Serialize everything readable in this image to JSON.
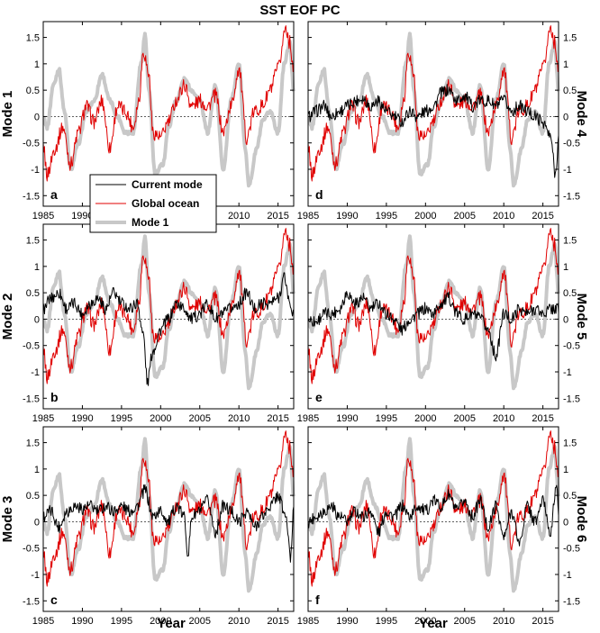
{
  "chart_data": {
    "type": "line",
    "title": "SST EOF PC",
    "xlabel": "Year",
    "xlim": [
      1985,
      2017
    ],
    "ylim": [
      -1.7,
      1.8
    ],
    "xticks": [
      "1985",
      "1990",
      "1995",
      "2000",
      "2005",
      "2010",
      "2015"
    ],
    "yticks": [
      "-1.5",
      "-1",
      "-0.5",
      "0",
      "0.5",
      "1",
      "1.5"
    ],
    "legend": {
      "placement": "inside panel a/b boundary",
      "entries": [
        {
          "name": "Current mode",
          "color": "#000000"
        },
        {
          "name": "Global ocean",
          "color": "#e00000"
        },
        {
          "name": "Mode 1",
          "color": "#c8c8c8"
        }
      ]
    },
    "colors": {
      "current": "#000000",
      "global": "#e00000",
      "mode1": "#c8c8c8"
    },
    "keypoints": {
      "global_ocean": [
        [
          1985,
          -0.55
        ],
        [
          1985.5,
          -1.1
        ],
        [
          1986.5,
          -0.6
        ],
        [
          1987.5,
          -0.2
        ],
        [
          1988.5,
          -0.9
        ],
        [
          1989.5,
          -0.3
        ],
        [
          1990.5,
          0.2
        ],
        [
          1991.5,
          -0.1
        ],
        [
          1992.5,
          0.3
        ],
        [
          1993.5,
          -0.6
        ],
        [
          1994.5,
          0.2
        ],
        [
          1995.5,
          0.1
        ],
        [
          1996.5,
          -0.2
        ],
        [
          1997.2,
          0.3
        ],
        [
          1997.8,
          1.25
        ],
        [
          1998.5,
          0.8
        ],
        [
          1999,
          -0.3
        ],
        [
          2000,
          -0.4
        ],
        [
          2001,
          -0.1
        ],
        [
          2002,
          0.3
        ],
        [
          2003,
          0.6
        ],
        [
          2004,
          0.2
        ],
        [
          2005,
          0.3
        ],
        [
          2006,
          0.2
        ],
        [
          2007,
          0.4
        ],
        [
          2008,
          -0.3
        ],
        [
          2009,
          0.2
        ],
        [
          2010,
          0.9
        ],
        [
          2011,
          -0.4
        ],
        [
          2012,
          0.1
        ],
        [
          2013,
          0.2
        ],
        [
          2014,
          0.5
        ],
        [
          2015,
          0.9
        ],
        [
          2016,
          1.7
        ],
        [
          2016.5,
          1.4
        ],
        [
          2017,
          0.9
        ]
      ],
      "mode1": [
        [
          1985,
          0.0
        ],
        [
          1985.5,
          -0.2
        ],
        [
          1986.3,
          0.6
        ],
        [
          1987,
          0.9
        ],
        [
          1987.7,
          0.1
        ],
        [
          1988.5,
          -1.0
        ],
        [
          1989.5,
          -0.5
        ],
        [
          1990.5,
          0.1
        ],
        [
          1991.5,
          0.3
        ],
        [
          1992.5,
          0.8
        ],
        [
          1993.5,
          0.3
        ],
        [
          1994.5,
          0.0
        ],
        [
          1995.5,
          -0.3
        ],
        [
          1996.5,
          -0.3
        ],
        [
          1997.5,
          1.0
        ],
        [
          1998,
          1.55
        ],
        [
          1998.5,
          0.5
        ],
        [
          1999.3,
          -1.1
        ],
        [
          2000.3,
          -0.9
        ],
        [
          2001,
          -0.2
        ],
        [
          2002,
          0.3
        ],
        [
          2003,
          0.7
        ],
        [
          2004,
          0.5
        ],
        [
          2005,
          0.3
        ],
        [
          2006,
          -0.3
        ],
        [
          2007,
          0.6
        ],
        [
          2008,
          -1.0
        ],
        [
          2009,
          0.3
        ],
        [
          2010,
          1.0
        ],
        [
          2010.8,
          -0.6
        ],
        [
          2011.3,
          -1.3
        ],
        [
          2012.3,
          -0.6
        ],
        [
          2013,
          -0.1
        ],
        [
          2014,
          0.1
        ],
        [
          2015,
          -0.3
        ],
        [
          2015.8,
          1.0
        ],
        [
          2016.5,
          1.4
        ],
        [
          2017,
          0.5
        ]
      ],
      "mode2": [
        [
          1985,
          0.2
        ],
        [
          1986,
          0.4
        ],
        [
          1987,
          0.5
        ],
        [
          1988,
          0.2
        ],
        [
          1989,
          0.3
        ],
        [
          1990,
          0.1
        ],
        [
          1991,
          0.3
        ],
        [
          1992,
          0.4
        ],
        [
          1993,
          0.2
        ],
        [
          1994,
          0.5
        ],
        [
          1995,
          0.3
        ],
        [
          1996,
          0.2
        ],
        [
          1997,
          0.3
        ],
        [
          1997.8,
          -0.3
        ],
        [
          1998.3,
          -1.2
        ],
        [
          1999,
          -0.6
        ],
        [
          2000,
          -0.2
        ],
        [
          2001,
          0.0
        ],
        [
          2002,
          0.3
        ],
        [
          2003,
          0.2
        ],
        [
          2004,
          0.0
        ],
        [
          2005,
          0.1
        ],
        [
          2006,
          0.3
        ],
        [
          2007,
          0.0
        ],
        [
          2008,
          0.1
        ],
        [
          2009,
          0.2
        ],
        [
          2010,
          0.3
        ],
        [
          2011,
          0.5
        ],
        [
          2012,
          0.2
        ],
        [
          2013,
          0.3
        ],
        [
          2014,
          0.3
        ],
        [
          2015,
          0.4
        ],
        [
          2015.8,
          0.8
        ],
        [
          2016.5,
          0.3
        ],
        [
          2017,
          0.1
        ]
      ],
      "mode3": [
        [
          1985,
          0.1
        ],
        [
          1986,
          0.2
        ],
        [
          1987,
          -0.1
        ],
        [
          1988,
          0.2
        ],
        [
          1989,
          0.3
        ],
        [
          1990,
          0.25
        ],
        [
          1991,
          0.3
        ],
        [
          1992,
          0.2
        ],
        [
          1993,
          0.3
        ],
        [
          1994,
          0.2
        ],
        [
          1995,
          0.3
        ],
        [
          1996,
          0.2
        ],
        [
          1997,
          0.3
        ],
        [
          1998,
          0.6
        ],
        [
          1999,
          0.1
        ],
        [
          2000,
          0.2
        ],
        [
          2001,
          0.0
        ],
        [
          2002,
          0.3
        ],
        [
          2003,
          0.1
        ],
        [
          2003.5,
          -0.6
        ],
        [
          2004,
          0.1
        ],
        [
          2005,
          0.2
        ],
        [
          2006,
          0.4
        ],
        [
          2007,
          -0.2
        ],
        [
          2008,
          0.3
        ],
        [
          2009,
          0.2
        ],
        [
          2010,
          0.0
        ],
        [
          2011,
          0.2
        ],
        [
          2012,
          -0.1
        ],
        [
          2013,
          0.1
        ],
        [
          2014,
          0.3
        ],
        [
          2015,
          0.5
        ],
        [
          2016,
          0.1
        ],
        [
          2016.6,
          -0.7
        ],
        [
          2017,
          0.3
        ]
      ],
      "mode4": [
        [
          1985,
          0.0
        ],
        [
          1986,
          0.1
        ],
        [
          1987,
          0.2
        ],
        [
          1988,
          0.0
        ],
        [
          1989,
          0.1
        ],
        [
          1990,
          0.2
        ],
        [
          1991,
          0.3
        ],
        [
          1992,
          0.35
        ],
        [
          1993,
          0.2
        ],
        [
          1994,
          0.3
        ],
        [
          1995,
          0.1
        ],
        [
          1996,
          0.0
        ],
        [
          1997,
          -0.1
        ],
        [
          1998,
          0.1
        ],
        [
          1999,
          0.0
        ],
        [
          2000,
          0.1
        ],
        [
          2001,
          0.2
        ],
        [
          2002,
          0.45
        ],
        [
          2003,
          0.5
        ],
        [
          2004,
          0.3
        ],
        [
          2005,
          0.4
        ],
        [
          2006,
          0.2
        ],
        [
          2007,
          0.3
        ],
        [
          2008,
          0.3
        ],
        [
          2009,
          0.2
        ],
        [
          2010,
          0.3
        ],
        [
          2011,
          0.1
        ],
        [
          2012,
          0.2
        ],
        [
          2013,
          0.1
        ],
        [
          2014,
          0.0
        ],
        [
          2015,
          -0.1
        ],
        [
          2016,
          -0.4
        ],
        [
          2016.6,
          -1.1
        ],
        [
          2017,
          -0.4
        ]
      ],
      "mode5": [
        [
          1985,
          0.0
        ],
        [
          1986,
          -0.05
        ],
        [
          1987,
          0.1
        ],
        [
          1988,
          0.1
        ],
        [
          1989,
          0.2
        ],
        [
          1990,
          0.5
        ],
        [
          1991,
          0.3
        ],
        [
          1992,
          0.4
        ],
        [
          1993,
          0.2
        ],
        [
          1994,
          0.3
        ],
        [
          1995,
          0.1
        ],
        [
          1996,
          0.0
        ],
        [
          1997,
          -0.2
        ],
        [
          1998,
          0.0
        ],
        [
          1999,
          0.1
        ],
        [
          2000,
          0.2
        ],
        [
          2001,
          0.1
        ],
        [
          2002,
          0.3
        ],
        [
          2003,
          0.4
        ],
        [
          2004,
          0.1
        ],
        [
          2005,
          0.0
        ],
        [
          2006,
          0.1
        ],
        [
          2007,
          0.0
        ],
        [
          2008,
          -0.2
        ],
        [
          2009,
          -0.7
        ],
        [
          2010,
          0.1
        ],
        [
          2011,
          0.0
        ],
        [
          2012,
          0.2
        ],
        [
          2013,
          0.1
        ],
        [
          2014,
          0.2
        ],
        [
          2015,
          0.1
        ],
        [
          2016,
          0.2
        ],
        [
          2017,
          0.2
        ]
      ],
      "mode6": [
        [
          1985,
          0.0
        ],
        [
          1986,
          0.1
        ],
        [
          1987,
          0.2
        ],
        [
          1988,
          0.3
        ],
        [
          1989,
          0.1
        ],
        [
          1990,
          0.0
        ],
        [
          1991,
          0.2
        ],
        [
          1992,
          0.1
        ],
        [
          1993,
          0.2
        ],
        [
          1994,
          -0.2
        ],
        [
          1995,
          0.2
        ],
        [
          1996,
          0.1
        ],
        [
          1997,
          0.3
        ],
        [
          1998,
          0.1
        ],
        [
          1999,
          0.3
        ],
        [
          2000,
          0.2
        ],
        [
          2001,
          0.4
        ],
        [
          2002,
          0.3
        ],
        [
          2003,
          0.5
        ],
        [
          2004,
          0.2
        ],
        [
          2005,
          0.4
        ],
        [
          2006,
          0.1
        ],
        [
          2007,
          0.4
        ],
        [
          2008,
          -0.1
        ],
        [
          2009,
          0.3
        ],
        [
          2010,
          -0.3
        ],
        [
          2011,
          0.2
        ],
        [
          2012,
          -0.4
        ],
        [
          2013,
          0.3
        ],
        [
          2014,
          0.0
        ],
        [
          2015,
          0.4
        ],
        [
          2016,
          -0.2
        ],
        [
          2016.7,
          0.7
        ],
        [
          2017,
          0.2
        ]
      ]
    },
    "panels": [
      {
        "letter": "a",
        "ylabel": "Mode 1",
        "mode_key": "mode1",
        "show_current": false
      },
      {
        "letter": "d",
        "ylabel": "Mode 4",
        "mode_key": "mode4",
        "show_current": true
      },
      {
        "letter": "b",
        "ylabel": "Mode 2",
        "mode_key": "mode2",
        "show_current": true
      },
      {
        "letter": "e",
        "ylabel": "Mode 5",
        "mode_key": "mode5",
        "show_current": true
      },
      {
        "letter": "c",
        "ylabel": "Mode 3",
        "mode_key": "mode3",
        "show_current": true
      },
      {
        "letter": "f",
        "ylabel": "Mode 6",
        "mode_key": "mode6",
        "show_current": true
      }
    ]
  }
}
